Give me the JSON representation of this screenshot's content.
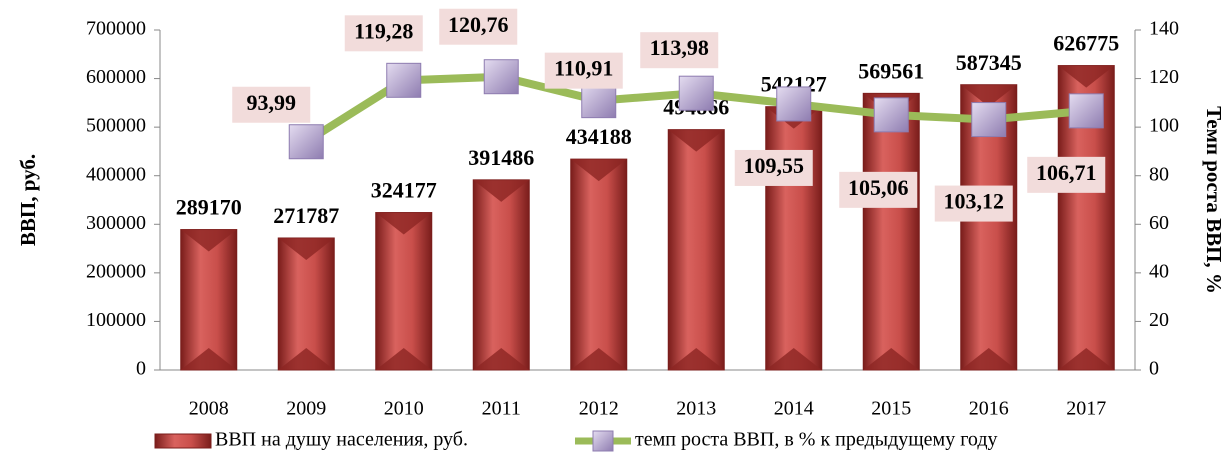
{
  "chart_data": {
    "type": "bar",
    "categories": [
      "2008",
      "2009",
      "2010",
      "2011",
      "2012",
      "2013",
      "2014",
      "2015",
      "2016",
      "2017"
    ],
    "series": [
      {
        "name": "ВВП на душу населения, руб.",
        "type": "bar",
        "color": "#c0504d",
        "values": [
          289170,
          271787,
          324177,
          391486,
          434188,
          494866,
          542127,
          569561,
          587345,
          626775
        ]
      },
      {
        "name": "темп роста ВВП, в % к предыдущему году",
        "type": "line",
        "axis": "y2",
        "color": "#9bbb59",
        "marker_color": "#b3a2c7",
        "values": [
          null,
          93.99,
          119.28,
          120.76,
          110.91,
          113.98,
          109.55,
          105.06,
          103.12,
          106.71
        ],
        "value_labels": [
          null,
          "93,99",
          "119,28",
          "120,76",
          "110,91",
          "113,98",
          "109,55",
          "105,06",
          "103,12",
          "106,71"
        ]
      }
    ],
    "ylabel": "ВВП, руб.",
    "y2label": "Темп роста ВВП, %",
    "ylim": [
      0,
      700000
    ],
    "yticks": [
      0,
      100000,
      200000,
      300000,
      400000,
      500000,
      600000,
      700000
    ],
    "y2lim": [
      0,
      140
    ],
    "y2ticks": [
      0,
      20,
      40,
      60,
      80,
      100,
      120,
      140
    ],
    "grid": false,
    "legend": "bottom"
  }
}
